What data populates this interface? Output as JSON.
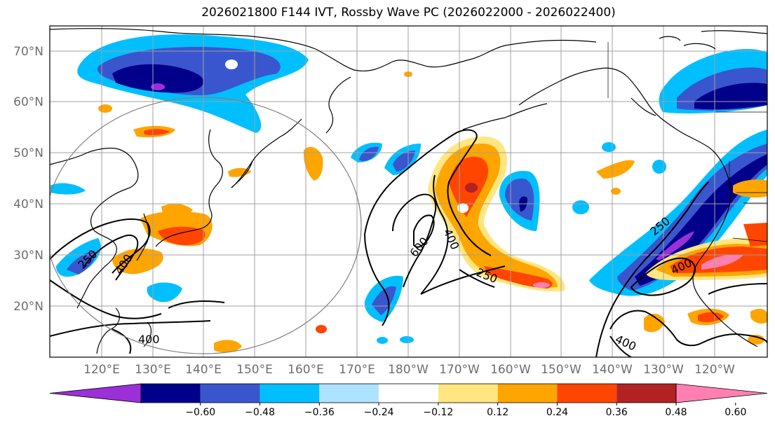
{
  "title": "2026021800 F144 IVT, Rossby Wave PC (2026022000 - 2026022400)",
  "lat_labels": [
    "70°N",
    "60°N",
    "50°N",
    "40°N",
    "30°N",
    "20°N"
  ],
  "lon_labels": [
    "120°E",
    "130°E",
    "140°E",
    "150°E",
    "160°E",
    "170°E",
    "180°W",
    "170°W",
    "160°W",
    "150°W",
    "140°W",
    "130°W",
    "120°W"
  ],
  "colorbar": {
    "colors": [
      "#9b30d9",
      "#00008b",
      "#3a56cf",
      "#00bfff",
      "#aee3ff",
      "#ffffff",
      "#ffe680",
      "#ffa500",
      "#ff4500",
      "#b22222",
      "#ff80b0"
    ],
    "labels": [
      "−0.60",
      "−0.48",
      "−0.36",
      "−0.24",
      "−0.12",
      "0.12",
      "0.24",
      "0.36",
      "0.48",
      "0.60"
    ]
  },
  "contour_labels": [
    "250",
    "400",
    "600",
    "400",
    "250",
    "250",
    "400",
    "400",
    "400"
  ],
  "colors": {
    "grid": "#a0a0a0",
    "coast": "#000000",
    "circle": "#808080"
  }
}
